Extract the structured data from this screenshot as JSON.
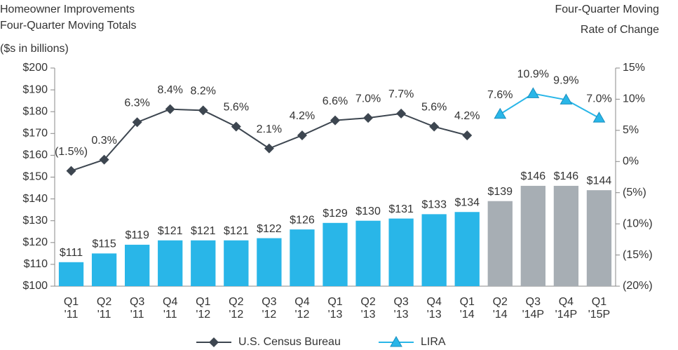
{
  "chart_data": {
    "type": "bar",
    "y_title": [
      "Homeowner Improvements",
      "Four-Quarter Moving Totals"
    ],
    "y_unit": "($s in billions)",
    "y2_title": [
      "Four-Quarter Moving",
      "Rate of Change"
    ],
    "categories": [
      "Q1 '11",
      "Q2 '11",
      "Q3 '11",
      "Q4 '11",
      "Q1 '12",
      "Q2 '12",
      "Q3 '12",
      "Q4 '12",
      "Q1 '13",
      "Q2 '13",
      "Q3 '13",
      "Q4 '13",
      "Q1 '14",
      "Q2 '14",
      "Q3 '14P",
      "Q4 '14P",
      "Q1 '15P"
    ],
    "values": [
      111,
      115,
      119,
      121,
      121,
      121,
      122,
      126,
      129,
      130,
      131,
      133,
      134,
      139,
      146,
      146,
      144
    ],
    "value_labels": [
      "$111",
      "$115",
      "$119",
      "$121",
      "$121",
      "$121",
      "$122",
      "$126",
      "$129",
      "$130",
      "$131",
      "$133",
      "$134",
      "$139",
      "$146",
      "$146",
      "$144"
    ],
    "colors": [
      "#29b6e8",
      "#29b6e8",
      "#29b6e8",
      "#29b6e8",
      "#29b6e8",
      "#29b6e8",
      "#29b6e8",
      "#29b6e8",
      "#29b6e8",
      "#29b6e8",
      "#29b6e8",
      "#29b6e8",
      "#29b6e8",
      "#a7aeb4",
      "#a7aeb4",
      "#a7aeb4",
      "#a7aeb4"
    ],
    "series": [
      {
        "name": "U.S. Census Bureau",
        "color": "#3d4650",
        "marker": "diamond",
        "axis": "y2",
        "type": "line",
        "values": [
          -1.5,
          0.3,
          6.3,
          8.4,
          8.2,
          5.6,
          2.1,
          4.2,
          6.6,
          7.0,
          7.7,
          5.6,
          4.2,
          null,
          null,
          null,
          null
        ],
        "value_labels": [
          "(1.5%)",
          "0.3%",
          "6.3%",
          "8.4%",
          "8.2%",
          "5.6%",
          "2.1%",
          "4.2%",
          "6.6%",
          "7.0%",
          "7.7%",
          "5.6%",
          "4.2%",
          null,
          null,
          null,
          null
        ]
      },
      {
        "name": "LIRA",
        "color": "#29b6e8",
        "marker": "triangle",
        "axis": "y2",
        "type": "line",
        "values": [
          null,
          null,
          null,
          null,
          null,
          null,
          null,
          null,
          null,
          null,
          null,
          null,
          null,
          7.6,
          10.9,
          9.9,
          7.0
        ],
        "value_labels": [
          null,
          null,
          null,
          null,
          null,
          null,
          null,
          null,
          null,
          null,
          null,
          null,
          null,
          "7.6%",
          "10.9%",
          "9.9%",
          "7.0%"
        ]
      }
    ],
    "ylim": [
      100,
      200
    ],
    "yticks": [
      {
        "value": 100,
        "label": "$100"
      },
      {
        "value": 110,
        "label": "$110"
      },
      {
        "value": 120,
        "label": "$120"
      },
      {
        "value": 130,
        "label": "$130"
      },
      {
        "value": 140,
        "label": "$140"
      },
      {
        "value": 150,
        "label": "$150"
      },
      {
        "value": 160,
        "label": "$160"
      },
      {
        "value": 170,
        "label": "$170"
      },
      {
        "value": 180,
        "label": "$180"
      },
      {
        "value": 190,
        "label": "$190"
      },
      {
        "value": 200,
        "label": "$200"
      }
    ],
    "y2lim": [
      -20,
      15
    ],
    "y2ticks": [
      {
        "value": 15,
        "label": "15%"
      },
      {
        "value": 10,
        "label": "10%"
      },
      {
        "value": 5,
        "label": "5%"
      },
      {
        "value": 0,
        "label": "0%"
      },
      {
        "value": -5,
        "label": "(5%)"
      },
      {
        "value": -10,
        "label": "(10%)"
      },
      {
        "value": -15,
        "label": "(15%)"
      },
      {
        "value": -20,
        "label": "(20%)"
      }
    ]
  }
}
